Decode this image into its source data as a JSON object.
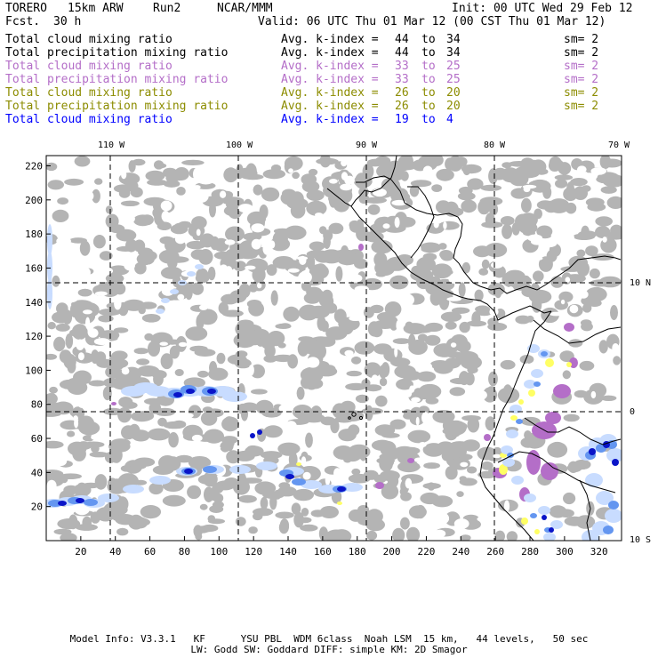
{
  "header": {
    "model": "TORERO",
    "resolution": "15km ARW",
    "run": "Run2",
    "org": "NCAR/MMM",
    "init": "Init: 00 UTC Wed 29 Feb 12",
    "fcst_label": "Fcst.",
    "fcst_value": "30 h",
    "valid": "Valid: 06 UTC Thu 01 Mar 12 (00 CST Thu 01 Mar 12)"
  },
  "fields": [
    {
      "name": "Total cloud mixing ratio",
      "avg": "Avg. k-index =",
      "k1": "44",
      "to": "to",
      "k2": "34",
      "sm": "sm= 2",
      "color": "#000000"
    },
    {
      "name": "Total precipitation mixing ratio",
      "avg": "Avg. k-index =",
      "k1": "44",
      "to": "to",
      "k2": "34",
      "sm": "sm= 2",
      "color": "#000000"
    },
    {
      "name": "Total cloud mixing ratio",
      "avg": "Avg. k-index =",
      "k1": "33",
      "to": "to",
      "k2": "25",
      "sm": "sm= 2",
      "color": "#b46ec8"
    },
    {
      "name": "Total precipitation mixing ratio",
      "avg": "Avg. k-index =",
      "k1": "33",
      "to": "to",
      "k2": "25",
      "sm": "sm= 2",
      "color": "#b46ec8"
    },
    {
      "name": "Total cloud mixing ratio",
      "avg": "Avg. k-index =",
      "k1": "26",
      "to": "to",
      "k2": "20",
      "sm": "sm= 2",
      "color": "#8c8c00"
    },
    {
      "name": "Total precipitation mixing ratio",
      "avg": "Avg. k-index =",
      "k1": "26",
      "to": "to",
      "k2": "20",
      "sm": "sm= 2",
      "color": "#8c8c00"
    },
    {
      "name": "Total cloud mixing ratio",
      "avg": "Avg. k-index =",
      "k1": "19",
      "to": "to",
      "k2": "4",
      "sm": "",
      "color": "#0000ff"
    }
  ],
  "map": {
    "top_lon_labels": [
      "110 W",
      "100 W",
      "90 W",
      "80 W",
      "70 W"
    ],
    "right_lat_labels": [
      "10 N",
      "0",
      "10 S"
    ],
    "left_ticks": [
      "220",
      "200",
      "180",
      "160",
      "140",
      "120",
      "100",
      "80",
      "60",
      "40",
      "20"
    ],
    "bottom_ticks": [
      "20",
      "40",
      "60",
      "80",
      "100",
      "120",
      "140",
      "160",
      "180",
      "200",
      "220",
      "240",
      "260",
      "280",
      "300",
      "320"
    ],
    "colors": {
      "cloud": "#b4b4b4",
      "precip_light": "#c8dcff",
      "precip_mid": "#6496f0",
      "precip_heavy": "#0a14c8",
      "purple": "#b46ec8",
      "yellow": "#ffff64"
    }
  },
  "footer": {
    "line1": "Model Info: V3.3.1   KF      YSU PBL  WDM 6class  Noah LSM  15 km,   44 levels,   50 sec",
    "line2": "LW: Godd SW: Goddard DIFF: simple KM: 2D Smagor"
  }
}
